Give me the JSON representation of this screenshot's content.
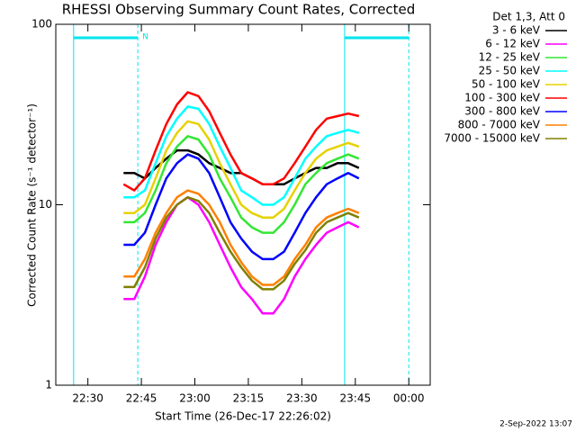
{
  "chart_data": {
    "type": "line",
    "title": "RHESSI Observing Summary Count Rates, Corrected",
    "xlabel": "Start Time (26-Dec-17 22:26:02)",
    "ylabel": "Corrected Count Rate (s⁻¹ detector⁻¹)",
    "legend_title": "Det 1,3, Att 0",
    "footer": "2-Sep-2022 13:07",
    "log_y": true,
    "ylim": [
      1,
      100
    ],
    "yticks": [
      1,
      10,
      100
    ],
    "xlim": [
      "22:21",
      "00:06"
    ],
    "xticks": [
      "22:30",
      "22:45",
      "23:00",
      "23:15",
      "23:30",
      "23:45",
      "00:00"
    ],
    "annotations": {
      "label": "N",
      "color": "#00e5ee",
      "intervals": [
        [
          "22:26",
          "22:44"
        ],
        [
          "23:42",
          "00:00"
        ]
      ]
    },
    "x": [
      "22:40",
      "22:43",
      "22:46",
      "22:49",
      "22:52",
      "22:55",
      "22:58",
      "23:01",
      "23:04",
      "23:07",
      "23:10",
      "23:13",
      "23:16",
      "23:19",
      "23:22",
      "23:25",
      "23:28",
      "23:31",
      "23:34",
      "23:37",
      "23:40",
      "23:43",
      "23:46"
    ],
    "series": [
      {
        "name": "3 - 6 keV",
        "color": "#000000",
        "values": [
          15,
          15,
          14,
          16,
          18,
          20,
          20,
          19,
          17,
          16,
          15,
          15,
          14,
          13,
          13,
          13,
          14,
          15,
          16,
          16,
          17,
          17,
          16
        ]
      },
      {
        "name": "6 - 12 keV",
        "color": "#ff00ff",
        "values": [
          3,
          3,
          4,
          6,
          8,
          10,
          11,
          10,
          8,
          6,
          4.5,
          3.5,
          3,
          2.5,
          2.5,
          3,
          4,
          5,
          6,
          7,
          7.5,
          8,
          7.5
        ]
      },
      {
        "name": "12 - 25 keV",
        "color": "#33e633",
        "values": [
          8,
          8,
          9,
          12,
          17,
          21,
          24,
          23,
          19,
          14,
          11,
          8.5,
          7.5,
          7,
          7,
          8,
          10,
          13,
          15,
          17,
          18,
          19,
          18
        ]
      },
      {
        "name": "25 - 50 keV",
        "color": "#00ffff",
        "values": [
          11,
          11,
          12,
          17,
          24,
          30,
          35,
          34,
          28,
          21,
          16,
          12,
          11,
          10,
          10,
          11,
          14,
          18,
          21,
          24,
          25,
          26,
          25
        ]
      },
      {
        "name": "50 - 100 keV",
        "color": "#e6d200",
        "values": [
          9,
          9,
          10,
          14,
          20,
          25,
          29,
          28,
          23,
          17,
          13,
          10,
          9,
          8.5,
          8.5,
          9.5,
          12,
          15,
          18,
          20,
          21,
          22,
          21
        ]
      },
      {
        "name": "100 - 300 keV",
        "color": "#ff0000",
        "values": [
          13,
          12,
          14,
          20,
          28,
          36,
          42,
          40,
          33,
          25,
          19,
          15,
          14,
          13,
          13,
          14,
          17,
          21,
          26,
          30,
          31,
          32,
          31
        ]
      },
      {
        "name": "300 - 800 keV",
        "color": "#0000ff",
        "values": [
          6,
          6,
          7,
          10,
          14,
          17,
          19,
          18,
          15,
          11,
          8,
          6.5,
          5.5,
          5,
          5,
          5.5,
          7,
          9,
          11,
          13,
          14,
          15,
          14
        ]
      },
      {
        "name": "800 - 7000 keV",
        "color": "#ff8000",
        "values": [
          4,
          4,
          5,
          7,
          9,
          11,
          12,
          11.5,
          10,
          8,
          6,
          4.8,
          4,
          3.6,
          3.6,
          4,
          5,
          6,
          7.5,
          8.5,
          9,
          9.5,
          9
        ]
      },
      {
        "name": "7000 - 15000 keV",
        "color": "#808000",
        "values": [
          3.5,
          3.5,
          4.5,
          6.5,
          8.5,
          10,
          11,
          10.5,
          9,
          7,
          5.5,
          4.5,
          3.8,
          3.4,
          3.4,
          3.8,
          4.7,
          5.6,
          7,
          8,
          8.5,
          9,
          8.5
        ]
      }
    ]
  }
}
